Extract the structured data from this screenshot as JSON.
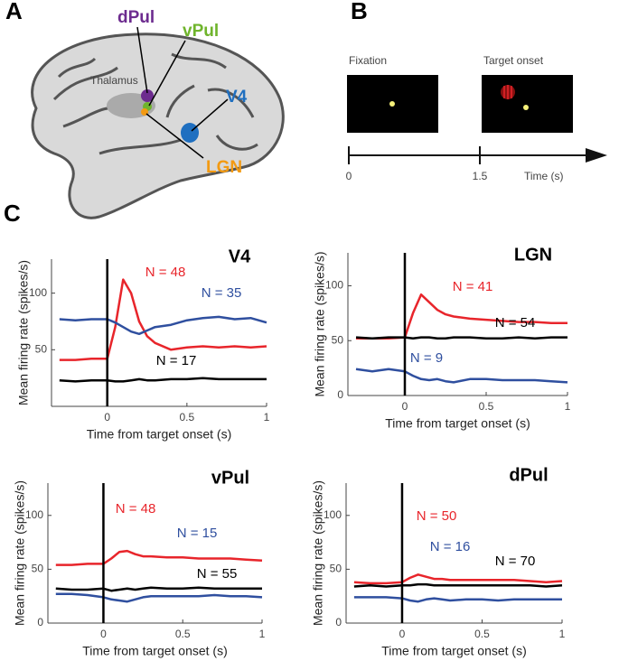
{
  "panel_a": {
    "label": "A",
    "dpul": "dPul",
    "vpul": "vPul",
    "thalamus": "Thalamus",
    "v4": "V4",
    "lgn": "LGN"
  },
  "panel_b": {
    "label": "B",
    "fixation": "Fixation",
    "target_onset": "Target onset",
    "start": "0",
    "mid": "1.5",
    "axis_label": "Time (s)"
  },
  "panel_c": {
    "label": "C"
  },
  "chart_data": [
    {
      "type": "line",
      "title": "V4",
      "xlabel": "Time from target onset (s)",
      "ylabel": "Mean firing rate (spikes/s)",
      "x": [
        -0.3,
        -0.2,
        -0.1,
        0,
        0.05,
        0.1,
        0.15,
        0.2,
        0.25,
        0.3,
        0.4,
        0.5,
        0.6,
        0.7,
        0.8,
        0.9,
        1
      ],
      "xlim": [
        -0.35,
        1
      ],
      "ylim": [
        0,
        130
      ],
      "xticks": [
        0,
        0.5,
        1
      ],
      "yticks": [
        50,
        100
      ],
      "vline": 0,
      "series": [
        {
          "name": "N = 48",
          "color": "#e8252b",
          "values": [
            41,
            41,
            42,
            42,
            70,
            112,
            100,
            75,
            62,
            56,
            50,
            52,
            53,
            52,
            53,
            52,
            53
          ]
        },
        {
          "name": "N = 35",
          "color": "#2f4f9f",
          "values": [
            77,
            76,
            77,
            77,
            74,
            70,
            66,
            64,
            67,
            70,
            72,
            76,
            78,
            79,
            77,
            78,
            74
          ]
        },
        {
          "name": "N = 17",
          "color": "#000000",
          "values": [
            23,
            22,
            23,
            23,
            22,
            22,
            23,
            24,
            23,
            23,
            24,
            24,
            25,
            24,
            24,
            24,
            24
          ]
        }
      ]
    },
    {
      "type": "line",
      "title": "LGN",
      "xlabel": "Time from target onset (s)",
      "ylabel": "Mean firing rate (spikes/s)",
      "x": [
        -0.3,
        -0.2,
        -0.1,
        0,
        0.05,
        0.1,
        0.15,
        0.2,
        0.25,
        0.3,
        0.4,
        0.5,
        0.6,
        0.7,
        0.8,
        0.9,
        1
      ],
      "xlim": [
        -0.35,
        1
      ],
      "ylim": [
        0,
        130
      ],
      "xticks": [
        0,
        0.5,
        1
      ],
      "yticks": [
        0,
        50,
        100
      ],
      "vline": 0,
      "series": [
        {
          "name": "N = 41",
          "color": "#e8252b",
          "values": [
            52,
            52,
            52,
            53,
            75,
            92,
            85,
            78,
            74,
            72,
            70,
            69,
            68,
            67,
            67,
            66,
            66
          ]
        },
        {
          "name": "N = 9",
          "color": "#2f4f9f",
          "values": [
            24,
            22,
            24,
            22,
            18,
            15,
            14,
            15,
            13,
            12,
            15,
            15,
            14,
            14,
            14,
            13,
            12
          ]
        },
        {
          "name": "N = 54",
          "color": "#000000",
          "values": [
            53,
            52,
            53,
            53,
            52,
            53,
            53,
            52,
            52,
            53,
            53,
            52,
            52,
            53,
            52,
            53,
            53
          ]
        }
      ]
    },
    {
      "type": "line",
      "title": "vPul",
      "xlabel": "Time from target onset (s)",
      "ylabel": "Mean firing rate (spikes/s)",
      "x": [
        -0.3,
        -0.2,
        -0.1,
        0,
        0.05,
        0.1,
        0.15,
        0.2,
        0.25,
        0.3,
        0.4,
        0.5,
        0.6,
        0.7,
        0.8,
        0.9,
        1
      ],
      "xlim": [
        -0.35,
        1
      ],
      "ylim": [
        0,
        130
      ],
      "xticks": [
        0,
        0.5,
        1
      ],
      "yticks": [
        0,
        50,
        100
      ],
      "vline": 0,
      "series": [
        {
          "name": "N = 48",
          "color": "#e8252b",
          "values": [
            54,
            54,
            55,
            55,
            60,
            66,
            67,
            64,
            62,
            62,
            61,
            61,
            60,
            60,
            60,
            59,
            58
          ]
        },
        {
          "name": "N = 15",
          "color": "#2f4f9f",
          "values": [
            27,
            27,
            26,
            24,
            22,
            21,
            20,
            22,
            24,
            25,
            25,
            25,
            25,
            26,
            25,
            25,
            24
          ]
        },
        {
          "name": "N = 55",
          "color": "#000000",
          "values": [
            32,
            31,
            31,
            32,
            30,
            31,
            32,
            31,
            32,
            33,
            32,
            32,
            33,
            32,
            32,
            32,
            32
          ]
        }
      ]
    },
    {
      "type": "line",
      "title": "dPul",
      "xlabel": "Time from target onset (s)",
      "ylabel": "Mean firing rate (spikes/s)",
      "x": [
        -0.3,
        -0.2,
        -0.1,
        0,
        0.05,
        0.1,
        0.15,
        0.2,
        0.25,
        0.3,
        0.4,
        0.5,
        0.6,
        0.7,
        0.8,
        0.9,
        1
      ],
      "xlim": [
        -0.35,
        1
      ],
      "ylim": [
        0,
        130
      ],
      "xticks": [
        0,
        0.5,
        1
      ],
      "yticks": [
        0,
        50,
        100
      ],
      "vline": 0,
      "series": [
        {
          "name": "N = 50",
          "color": "#e8252b",
          "values": [
            38,
            37,
            37,
            38,
            42,
            45,
            43,
            41,
            41,
            40,
            40,
            40,
            40,
            40,
            39,
            38,
            39
          ]
        },
        {
          "name": "N = 16",
          "color": "#2f4f9f",
          "values": [
            24,
            24,
            24,
            23,
            21,
            20,
            22,
            23,
            22,
            21,
            22,
            22,
            21,
            22,
            22,
            22,
            22
          ]
        },
        {
          "name": "N = 70",
          "color": "#000000",
          "values": [
            34,
            35,
            34,
            35,
            35,
            36,
            36,
            35,
            35,
            35,
            35,
            35,
            35,
            35,
            35,
            34,
            35
          ]
        }
      ]
    }
  ]
}
